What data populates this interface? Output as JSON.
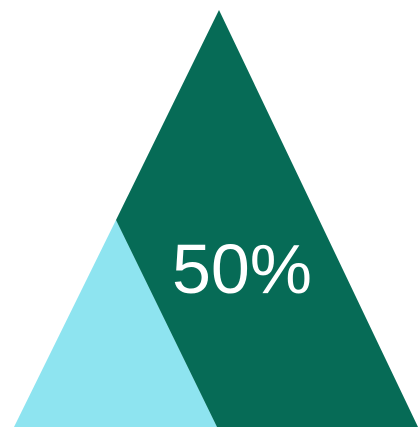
{
  "diagram": {
    "label": "50%",
    "fraction": 0.5,
    "colors": {
      "filled": "#066b56",
      "remainder": "#8ee4f0",
      "label": "#ffffff"
    }
  }
}
